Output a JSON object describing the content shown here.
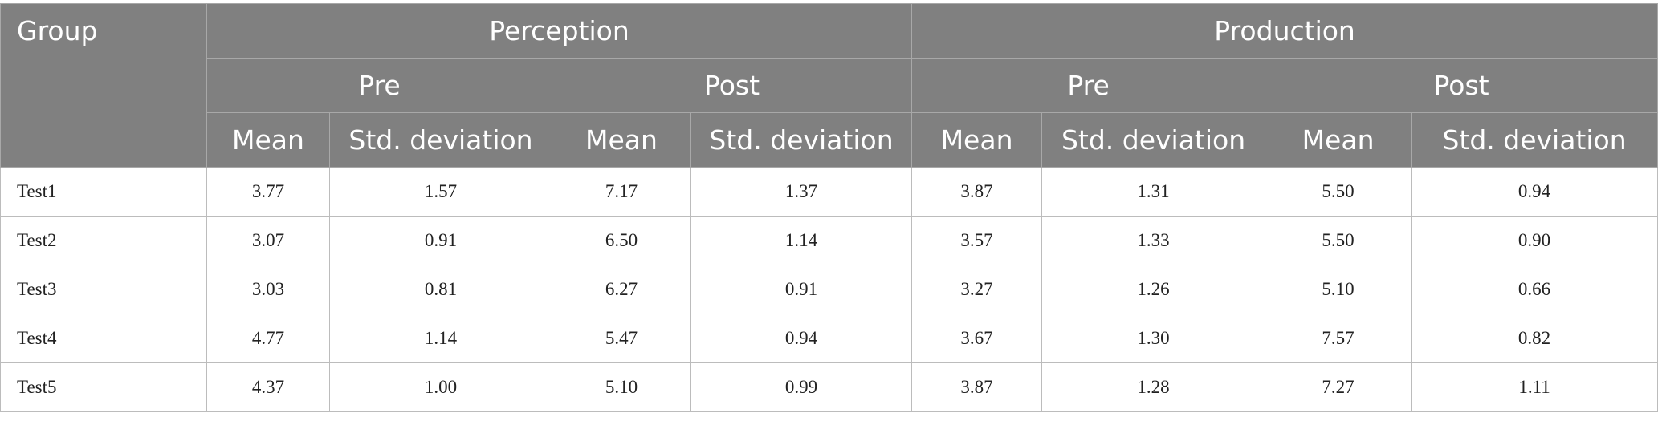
{
  "table": {
    "header": [
      [
        "Group",
        "Perception",
        "Production"
      ],
      [
        "Pre",
        "Post",
        "Pre",
        "Post"
      ],
      [
        "Mean",
        "Std. deviation",
        "Mean",
        "Std. deviation",
        "Mean",
        "Std. deviation",
        "Mean",
        "Std. deviation"
      ]
    ],
    "rows": [
      [
        "Test1",
        "3.77",
        "1.57",
        "7.17",
        "1.37",
        "3.87",
        "1.31",
        "5.50",
        "0.94"
      ],
      [
        "Test2",
        "3.07",
        "0.91",
        "6.50",
        "1.14",
        "3.57",
        "1.33",
        "5.50",
        "0.90"
      ],
      [
        "Test3",
        "3.03",
        "0.81",
        "6.27",
        "0.91",
        "3.27",
        "1.26",
        "5.10",
        "0.66"
      ],
      [
        "Test4",
        "4.77",
        "1.14",
        "5.47",
        "0.94",
        "3.67",
        "1.30",
        "7.57",
        "0.82"
      ],
      [
        "Test5",
        "4.37",
        "1.00",
        "5.10",
        "0.99",
        "3.87",
        "1.28",
        "7.27",
        "1.11"
      ]
    ]
  }
}
